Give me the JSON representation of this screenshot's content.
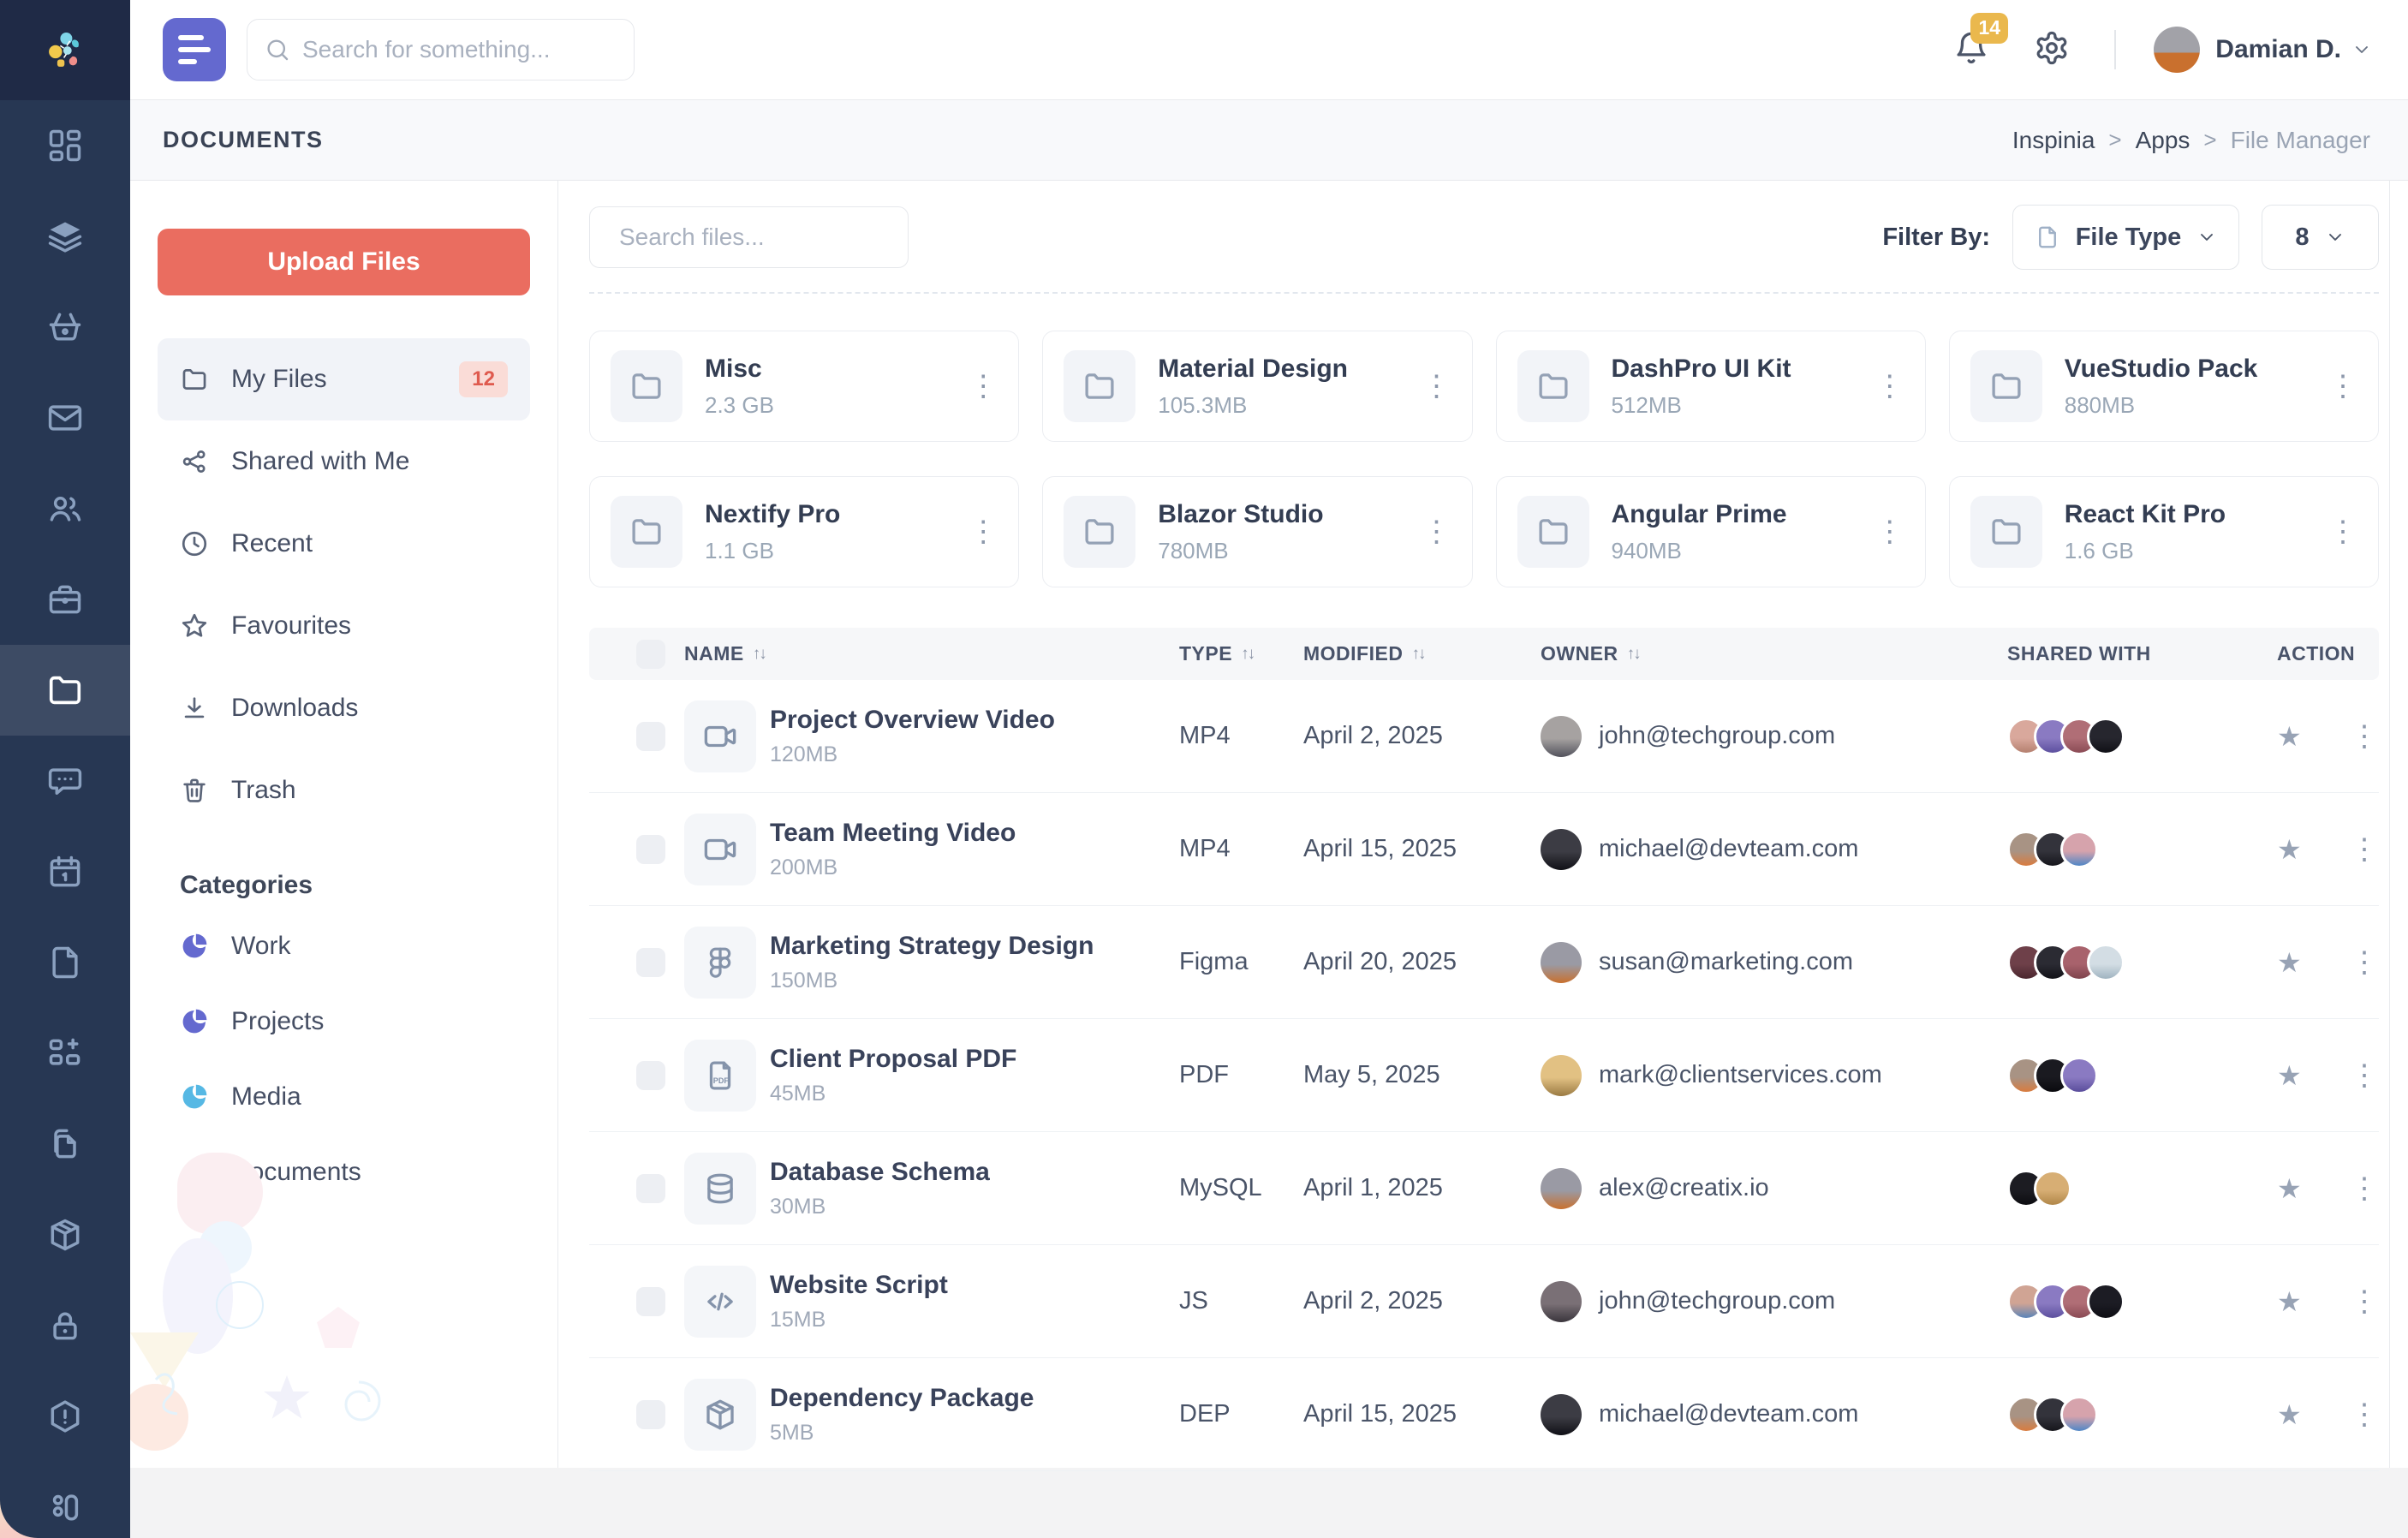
{
  "colors": {
    "accent_purple": "#6469cf",
    "coral": "#ea6d60",
    "badge_amber": "#eab84d",
    "rail_navy": "#273753",
    "media_blue": "#56b8e4",
    "docs_yellow": "#eebf53"
  },
  "topbar": {
    "search_placeholder": "Search for something...",
    "notification_count": "14",
    "user_name": "Damian D."
  },
  "rail": {
    "items": [
      "dashboard",
      "layers",
      "basket",
      "mail",
      "users",
      "briefcase",
      "folder",
      "chat",
      "calendar",
      "file",
      "grid-plus",
      "copy",
      "package",
      "lock",
      "alert-hexagon",
      "kanban"
    ],
    "active": "folder"
  },
  "page": {
    "title": "DOCUMENTS",
    "breadcrumb": [
      "Inspinia",
      "Apps",
      "File Manager"
    ],
    "breadcrumb_sep": ">"
  },
  "panel": {
    "upload_label": "Upload Files",
    "nav": [
      {
        "icon": "folder",
        "label": "My Files",
        "badge": "12",
        "active": true
      },
      {
        "icon": "share",
        "label": "Shared with Me"
      },
      {
        "icon": "clock",
        "label": "Recent"
      },
      {
        "icon": "star",
        "label": "Favourites"
      },
      {
        "icon": "download",
        "label": "Downloads"
      },
      {
        "icon": "trash",
        "label": "Trash"
      }
    ],
    "categories_title": "Categories",
    "categories": [
      {
        "label": "Work",
        "color": "#6469cf"
      },
      {
        "label": "Projects",
        "color": "#6469cf"
      },
      {
        "label": "Media",
        "color": "#56b8e4"
      },
      {
        "label": "Documents",
        "color": "#eebf53"
      }
    ]
  },
  "toolbar": {
    "search_placeholder": "Search files...",
    "filter_label": "Filter By:",
    "file_type_label": "File Type",
    "page_size": "8"
  },
  "folders": [
    {
      "name": "Misc",
      "size": "2.3 GB"
    },
    {
      "name": "Material Design",
      "size": "105.3MB"
    },
    {
      "name": "DashPro UI Kit",
      "size": "512MB"
    },
    {
      "name": "VueStudio Pack",
      "size": "880MB"
    },
    {
      "name": "Nextify Pro",
      "size": "1.1 GB"
    },
    {
      "name": "Blazor Studio",
      "size": "780MB"
    },
    {
      "name": "Angular Prime",
      "size": "940MB"
    },
    {
      "name": "React Kit Pro",
      "size": "1.6 GB"
    }
  ],
  "table": {
    "sort_glyph": "↑↓",
    "headers": [
      {
        "label": "NAME"
      },
      {
        "label": "TYPE"
      },
      {
        "label": "MODIFIED"
      },
      {
        "label": "OWNER"
      },
      {
        "label": "SHARED WITH"
      },
      {
        "label": "ACTION"
      }
    ],
    "rows": [
      {
        "name": "Project Overview Video",
        "size": "120MB",
        "icon": "video",
        "type": "MP4",
        "modified": "April 2, 2025",
        "owner": {
          "email": "john@techgroup.com",
          "colors": [
            "#a6a2a1",
            "#52525c"
          ]
        },
        "shared": [
          [
            "#d9a89c",
            "#b5806f"
          ],
          [
            "#8a7ac2",
            "#5c4f9e"
          ],
          [
            "#b06e76",
            "#8a4a54"
          ],
          [
            "#26262e",
            "#101016"
          ]
        ]
      },
      {
        "name": "Team Meeting Video",
        "size": "200MB",
        "icon": "video",
        "type": "MP4",
        "modified": "April 15, 2025",
        "owner": {
          "email": "michael@devteam.com",
          "colors": [
            "#3c3c44",
            "#101016"
          ]
        },
        "shared": [
          [
            "#a89384",
            "#d97c3f"
          ],
          [
            "#33333b",
            "#16161c"
          ],
          [
            "#d6a3ac",
            "#4f86c6"
          ]
        ]
      },
      {
        "name": "Marketing Strategy Design",
        "size": "150MB",
        "icon": "figma",
        "type": "Figma",
        "modified": "April 20, 2025",
        "owner": {
          "email": "susan@marketing.com",
          "colors": [
            "#9a9aa4",
            "#c9702e"
          ]
        },
        "shared": [
          [
            "#6e4049",
            "#4a262e"
          ],
          [
            "#2b2b33",
            "#121218"
          ],
          [
            "#a8626c",
            "#7e434c"
          ],
          [
            "#d3dde4",
            "#9fb3c0"
          ]
        ]
      },
      {
        "name": "Client Proposal PDF",
        "size": "45MB",
        "icon": "pdf",
        "type": "PDF",
        "modified": "May 5, 2025",
        "owner": {
          "email": "mark@clientservices.com",
          "colors": [
            "#e2c183",
            "#9a7a42"
          ]
        },
        "shared": [
          [
            "#a89384",
            "#d97c3f"
          ],
          [
            "#1a1a20",
            "#0a0a0e"
          ],
          [
            "#8a7ac2",
            "#5a4d9c"
          ]
        ]
      },
      {
        "name": "Database Schema",
        "size": "30MB",
        "icon": "database",
        "type": "MySQL",
        "modified": "April 1, 2025",
        "owner": {
          "email": "alex@creatix.io",
          "colors": [
            "#9a9aa4",
            "#c9702e"
          ]
        },
        "shared": [
          [
            "#1c1c22",
            "#0c0c10"
          ],
          [
            "#d7ae74",
            "#b08648"
          ]
        ]
      },
      {
        "name": "Website Script",
        "size": "15MB",
        "icon": "code",
        "type": "JS",
        "modified": "April 2, 2025",
        "owner": {
          "email": "john@techgroup.com",
          "colors": [
            "#7a7076",
            "#3a353c"
          ]
        },
        "shared": [
          [
            "#d0a494",
            "#5a83b8"
          ],
          [
            "#8a7ac2",
            "#5c4f9e"
          ],
          [
            "#b06e76",
            "#8a4a54"
          ],
          [
            "#1c1c24",
            "#0e0e14"
          ]
        ]
      },
      {
        "name": "Dependency Package",
        "size": "5MB",
        "icon": "package",
        "type": "DEP",
        "modified": "April 15, 2025",
        "owner": {
          "email": "michael@devteam.com",
          "colors": [
            "#3c3c44",
            "#101016"
          ]
        },
        "shared": [
          [
            "#a89384",
            "#d97c3f"
          ],
          [
            "#33333b",
            "#16161c"
          ],
          [
            "#d6a3ac",
            "#4f86c6"
          ]
        ]
      }
    ]
  }
}
